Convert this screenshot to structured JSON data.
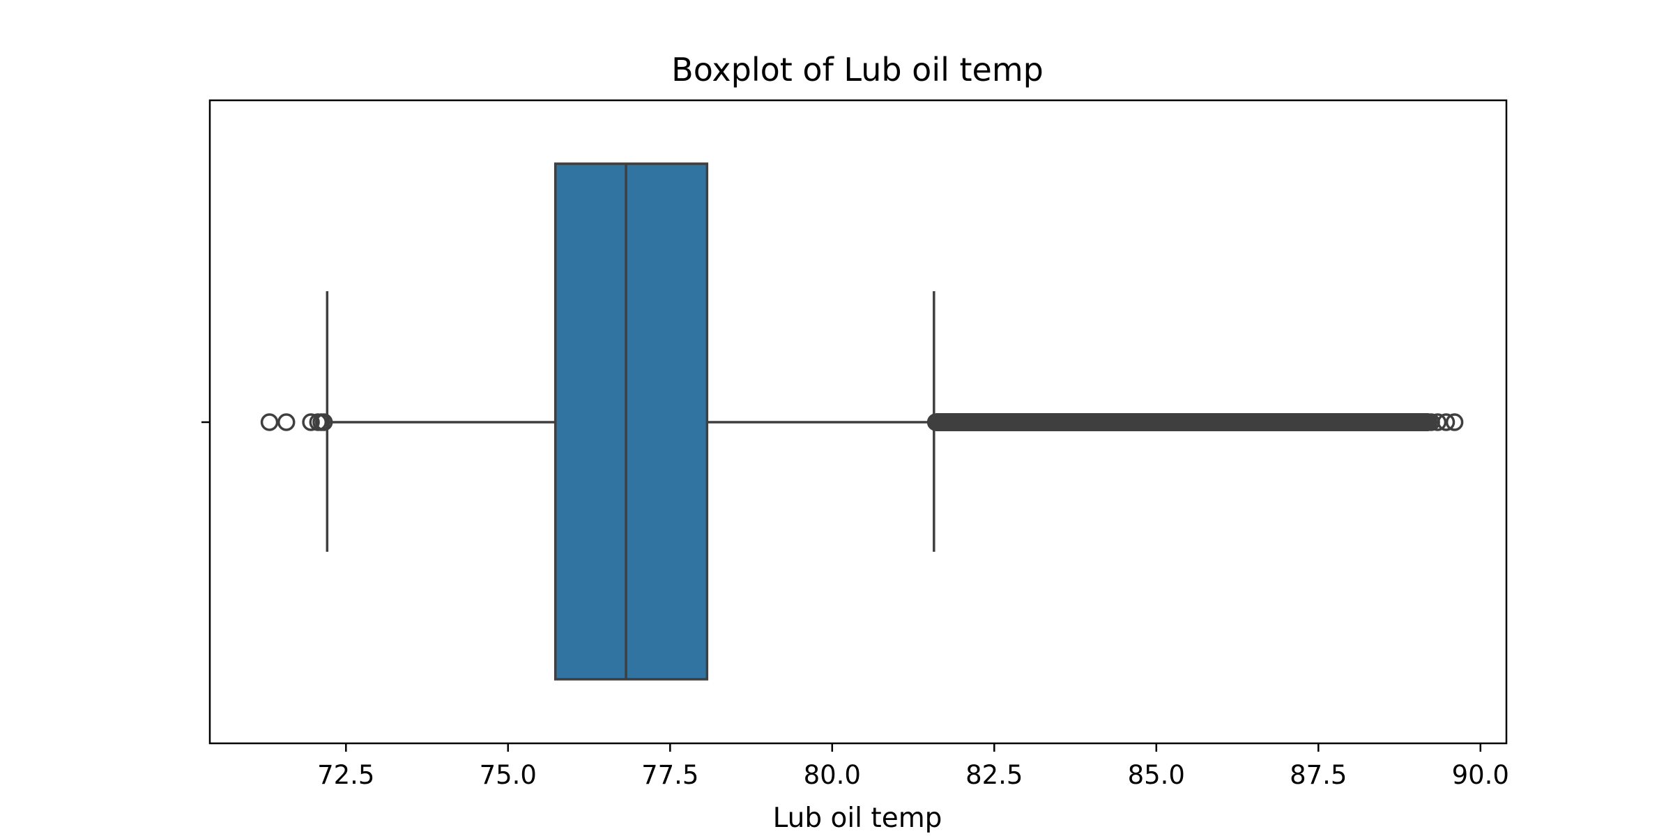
{
  "chart_data": {
    "type": "boxplot",
    "orientation": "horizontal",
    "title": "Boxplot of Lub oil temp",
    "xlabel": "Lub oil temp",
    "ylabel": "",
    "xlim": [
      70.4,
      90.4
    ],
    "xticks": [
      72.5,
      75.0,
      77.5,
      80.0,
      82.5,
      85.0,
      87.5,
      90.0
    ],
    "xtick_labels": [
      "72.5",
      "75.0",
      "77.5",
      "80.0",
      "82.5",
      "85.0",
      "87.5",
      "90.0"
    ],
    "grid": false,
    "legend": "none",
    "series": [
      {
        "whisker_low": 72.21,
        "q1": 75.73,
        "median": 76.82,
        "q3": 78.07,
        "whisker_high": 81.57,
        "outliers_low": [
          71.32,
          71.58,
          71.96,
          72.07,
          72.12,
          72.16
        ],
        "outliers_high_dense_range": [
          81.6,
          89.2
        ],
        "outliers_high_sparse": [
          89.24,
          89.34,
          89.47,
          89.6
        ]
      }
    ],
    "colors": {
      "box_fill": "#3274a1",
      "line": "#3f3f3f",
      "axes": "#000000"
    }
  }
}
